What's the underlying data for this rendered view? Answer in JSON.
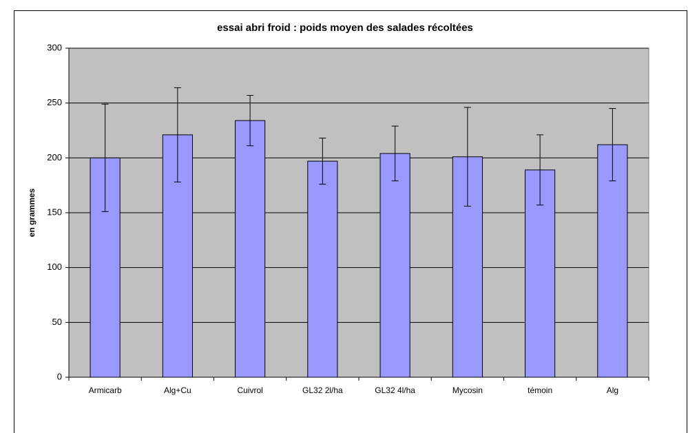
{
  "chart_data": {
    "type": "bar",
    "title": "essai abri froid : poids moyen des salades récoltées",
    "y_label": "en grammes",
    "categories": [
      "Armicarb",
      "Alg+Cu",
      "Cuivrol",
      "GL32 2l/ha",
      "GL32 4l/ha",
      "Mycosin",
      "témoin",
      "Alg"
    ],
    "values": [
      200,
      221,
      234,
      197,
      204,
      201,
      189,
      212
    ],
    "errors": [
      49,
      43,
      23,
      21,
      25,
      45,
      32,
      33
    ],
    "color": "#9999ff",
    "ylim": [
      0,
      300
    ],
    "yticks": [
      0,
      50,
      100,
      150,
      200,
      250,
      300
    ],
    "grid": true
  }
}
